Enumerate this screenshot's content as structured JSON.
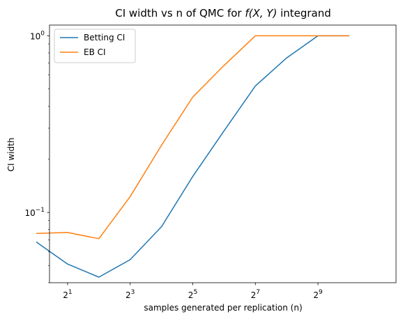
{
  "chart_data": {
    "type": "line",
    "title_prefix": "CI width vs n of QMC for ",
    "title_math": "f(X, Y)",
    "title_suffix": " integrand",
    "xlabel": "samples generated per replication (n)",
    "ylabel": "CI width",
    "x_scale": "log2",
    "y_scale": "log10",
    "xlim": [
      1.34,
      2884
    ],
    "ylim": [
      0.04,
      1.15
    ],
    "x_ticks": [
      {
        "value": 2,
        "base": "2",
        "exp": "1"
      },
      {
        "value": 8,
        "base": "2",
        "exp": "3"
      },
      {
        "value": 32,
        "base": "2",
        "exp": "5"
      },
      {
        "value": 128,
        "base": "2",
        "exp": "7"
      },
      {
        "value": 512,
        "base": "2",
        "exp": "9"
      }
    ],
    "y_major_ticks": [
      {
        "value": 0.1,
        "base": "10",
        "exp": "−1"
      },
      {
        "value": 1,
        "base": "10",
        "exp": "0"
      }
    ],
    "y_minor_ticks": [
      0.04,
      0.05,
      0.06,
      0.07,
      0.08,
      0.09,
      0.2,
      0.3,
      0.4,
      0.5,
      0.6,
      0.7,
      0.8,
      0.9
    ],
    "x": [
      1,
      2,
      4,
      8,
      16,
      32,
      64,
      128,
      256,
      512,
      1024
    ],
    "series": [
      {
        "name": "Betting CI",
        "color": "#1f77b4",
        "values": [
          0.068,
          0.051,
          0.043,
          0.054,
          0.083,
          0.16,
          0.29,
          0.52,
          0.75,
          1.0,
          1.0
        ]
      },
      {
        "name": "EB CI",
        "color": "#ff7f0e",
        "values": [
          0.076,
          0.077,
          0.071,
          0.123,
          0.24,
          0.45,
          0.68,
          1.0,
          1.0,
          1.0,
          1.0
        ]
      }
    ],
    "legend_position": "upper-left",
    "grid": false
  }
}
